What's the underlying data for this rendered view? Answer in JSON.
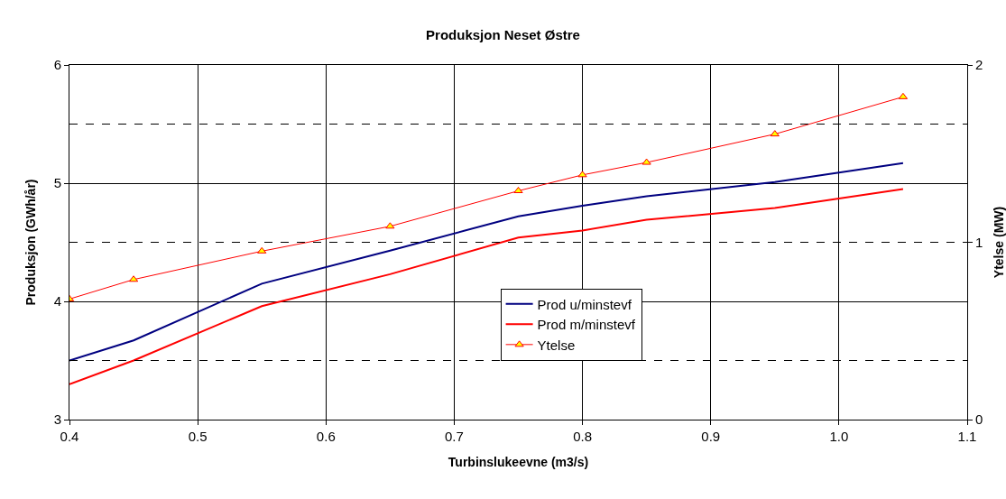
{
  "chart_data": {
    "type": "line",
    "title": "Produksjon Neset Østre",
    "xlabel": "Turbinslukeevne (m3/s)",
    "ylabel": "Produksjon (GWh/år)",
    "y2label": "Ytelse (MW)",
    "x": [
      0.4,
      0.45,
      0.55,
      0.65,
      0.75,
      0.8,
      0.85,
      0.95,
      1.05
    ],
    "series": [
      {
        "name": "Prod u/minstevf",
        "color": "#000080",
        "values": [
          3.5,
          3.67,
          4.15,
          4.43,
          4.72,
          4.81,
          4.89,
          5.01,
          5.17
        ],
        "marker": "none"
      },
      {
        "name": "Prod m/minstevf",
        "color": "#ff0000",
        "values": [
          3.3,
          3.5,
          3.96,
          4.23,
          4.54,
          4.6,
          4.69,
          4.79,
          4.95
        ],
        "marker": "none"
      },
      {
        "name": "Ytelse",
        "color": "#ff0000",
        "axis": "y2",
        "values": [
          0.68,
          0.79,
          0.95,
          1.09,
          1.29,
          1.38,
          1.45,
          1.61,
          1.82
        ],
        "marker": "triangle"
      }
    ],
    "xlim": [
      0.4,
      1.1
    ],
    "xticks": [
      0.4,
      0.5,
      0.6,
      0.7,
      0.8,
      0.9,
      {
        "value": 1,
        "label": "1.0"
      },
      1.1
    ],
    "ylim": [
      3,
      6
    ],
    "yticks": [
      3,
      4,
      5,
      6
    ],
    "y2lim": [
      0,
      2
    ],
    "y2ticks": [
      0,
      1,
      2
    ],
    "ref_lines": [
      {
        "axis": "y",
        "value": 3.5,
        "line_style": "dashed",
        "color": "#000000"
      },
      {
        "axis": "y",
        "value": 4.5,
        "line_style": "dashed",
        "color": "#000000"
      },
      {
        "axis": "y",
        "value": 5.5,
        "line_style": "dashed",
        "color": "#000000"
      }
    ],
    "grid": true,
    "legend": "center",
    "line_style": "solid"
  }
}
